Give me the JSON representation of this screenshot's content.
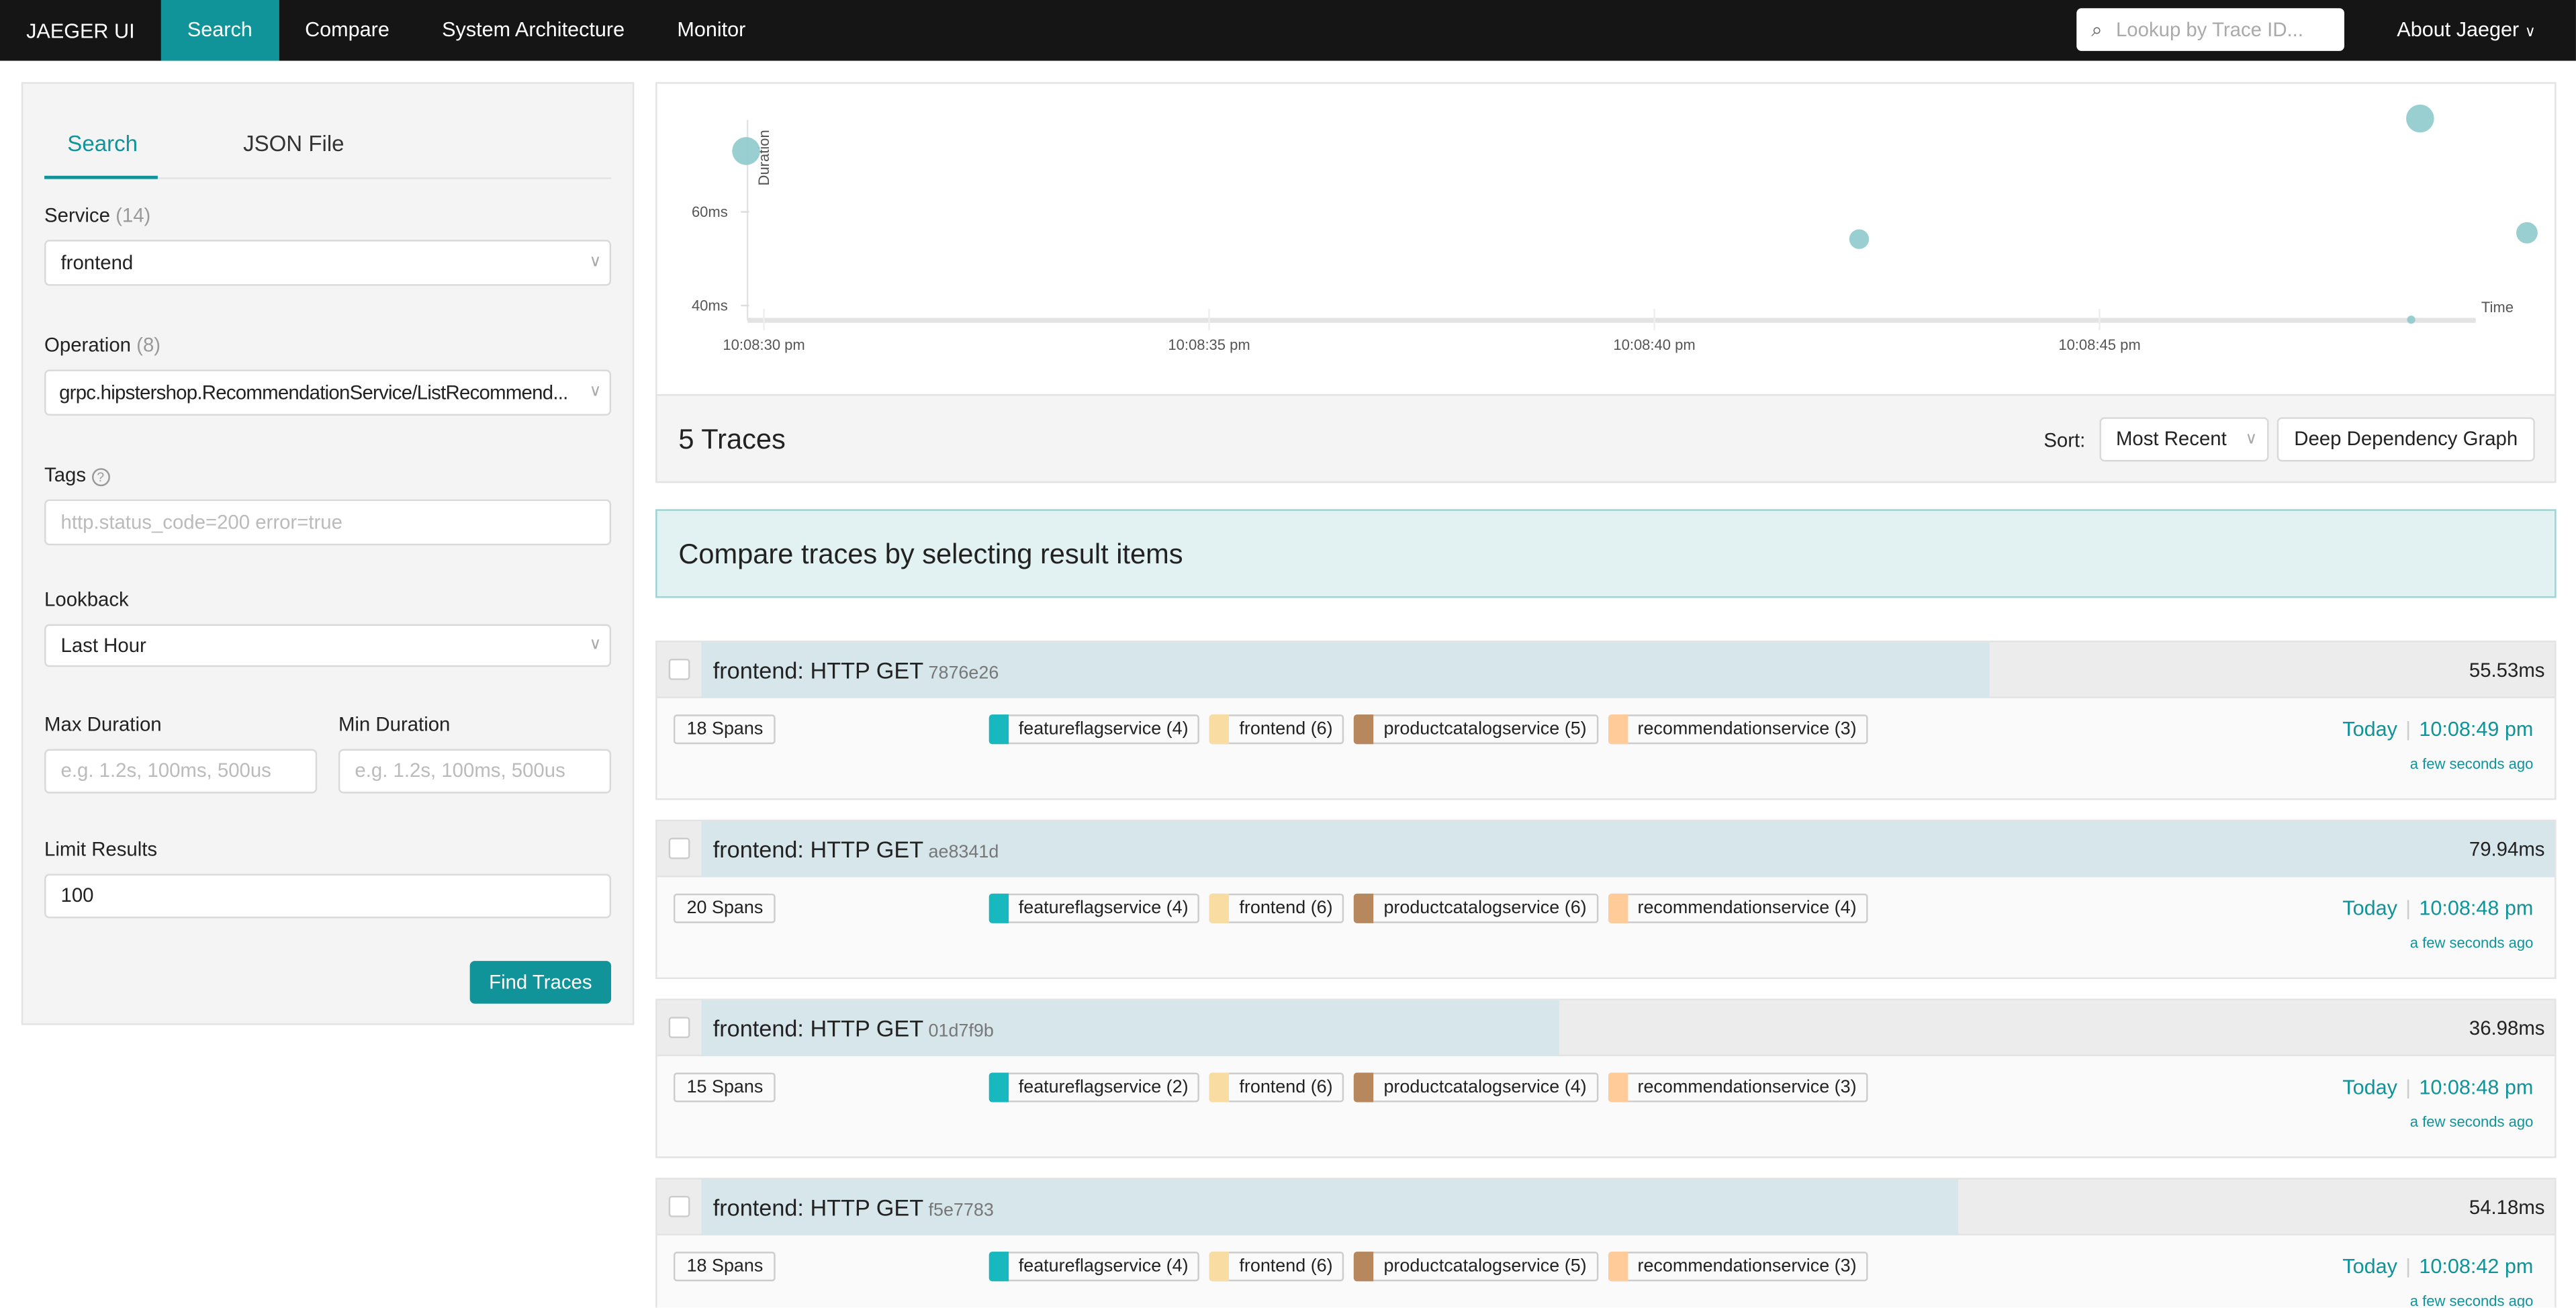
{
  "nav": {
    "brand": "JAEGER UI",
    "items": [
      "Search",
      "Compare",
      "System Architecture",
      "Monitor"
    ],
    "active": "Search",
    "lookup_placeholder": "Lookup by Trace ID...",
    "about": "About Jaeger"
  },
  "sidebar": {
    "tabs": [
      "Search",
      "JSON File"
    ],
    "active_tab": "Search",
    "service": {
      "label": "Service",
      "count": "(14)",
      "value": "frontend"
    },
    "operation": {
      "label": "Operation",
      "count": "(8)",
      "value": "grpc.hipstershop.RecommendationService/ListRecommend..."
    },
    "tags": {
      "label": "Tags",
      "placeholder": "http.status_code=200 error=true"
    },
    "lookback": {
      "label": "Lookback",
      "value": "Last Hour"
    },
    "max_duration": {
      "label": "Max Duration",
      "placeholder": "e.g. 1.2s, 100ms, 500us"
    },
    "min_duration": {
      "label": "Min Duration",
      "placeholder": "e.g. 1.2s, 100ms, 500us"
    },
    "limit": {
      "label": "Limit Results",
      "value": "100"
    },
    "find_button": "Find Traces"
  },
  "chart_data": {
    "type": "scatter",
    "xlabel": "Time",
    "ylabel": "Duration",
    "x_ticks": [
      "10:08:30 pm",
      "10:08:35 pm",
      "10:08:40 pm",
      "10:08:45 pm"
    ],
    "y_ticks": [
      "40ms",
      "60ms"
    ],
    "points": [
      {
        "time_s": 29.8,
        "duration_ms": 73
      },
      {
        "time_s": 42.3,
        "duration_ms": 54.18
      },
      {
        "time_s": 48.5,
        "duration_ms": 36.98
      },
      {
        "time_s": 48.6,
        "duration_ms": 79.94
      },
      {
        "time_s": 49.8,
        "duration_ms": 55.53
      }
    ],
    "color": "#8ecacc"
  },
  "results": {
    "count": "5 Traces",
    "sort_label": "Sort:",
    "sort_value": "Most Recent",
    "ddg_button": "Deep Dependency Graph",
    "compare_text": "Compare traces by selecting result items"
  },
  "service_colors": {
    "featureflagservice": "#17b8be",
    "frontend": "#f8dca1",
    "productcatalogservice": "#b7885e",
    "recommendationservice": "#ffcb99"
  },
  "traces": [
    {
      "title": "frontend: HTTP GET",
      "id": "7876e26",
      "duration": "55.53ms",
      "duration_ms": 55.53,
      "spans": "18 Spans",
      "services": [
        [
          "featureflagservice",
          "(4)"
        ],
        [
          "frontend",
          "(6)"
        ],
        [
          "productcatalogservice",
          "(5)"
        ],
        [
          "recommendationservice",
          "(3)"
        ]
      ],
      "day": "Today",
      "time": "10:08:49 pm",
      "ago": "a few seconds ago"
    },
    {
      "title": "frontend: HTTP GET",
      "id": "ae8341d",
      "duration": "79.94ms",
      "duration_ms": 79.94,
      "spans": "20 Spans",
      "services": [
        [
          "featureflagservice",
          "(4)"
        ],
        [
          "frontend",
          "(6)"
        ],
        [
          "productcatalogservice",
          "(6)"
        ],
        [
          "recommendationservice",
          "(4)"
        ]
      ],
      "day": "Today",
      "time": "10:08:48 pm",
      "ago": "a few seconds ago"
    },
    {
      "title": "frontend: HTTP GET",
      "id": "01d7f9b",
      "duration": "36.98ms",
      "duration_ms": 36.98,
      "spans": "15 Spans",
      "services": [
        [
          "featureflagservice",
          "(2)"
        ],
        [
          "frontend",
          "(6)"
        ],
        [
          "productcatalogservice",
          "(4)"
        ],
        [
          "recommendationservice",
          "(3)"
        ]
      ],
      "day": "Today",
      "time": "10:08:48 pm",
      "ago": "a few seconds ago"
    },
    {
      "title": "frontend: HTTP GET",
      "id": "f5e7783",
      "duration": "54.18ms",
      "duration_ms": 54.18,
      "spans": "18 Spans",
      "services": [
        [
          "featureflagservice",
          "(4)"
        ],
        [
          "frontend",
          "(6)"
        ],
        [
          "productcatalogservice",
          "(5)"
        ],
        [
          "recommendationservice",
          "(3)"
        ]
      ],
      "day": "Today",
      "time": "10:08:42 pm",
      "ago": "a few seconds ago"
    }
  ]
}
